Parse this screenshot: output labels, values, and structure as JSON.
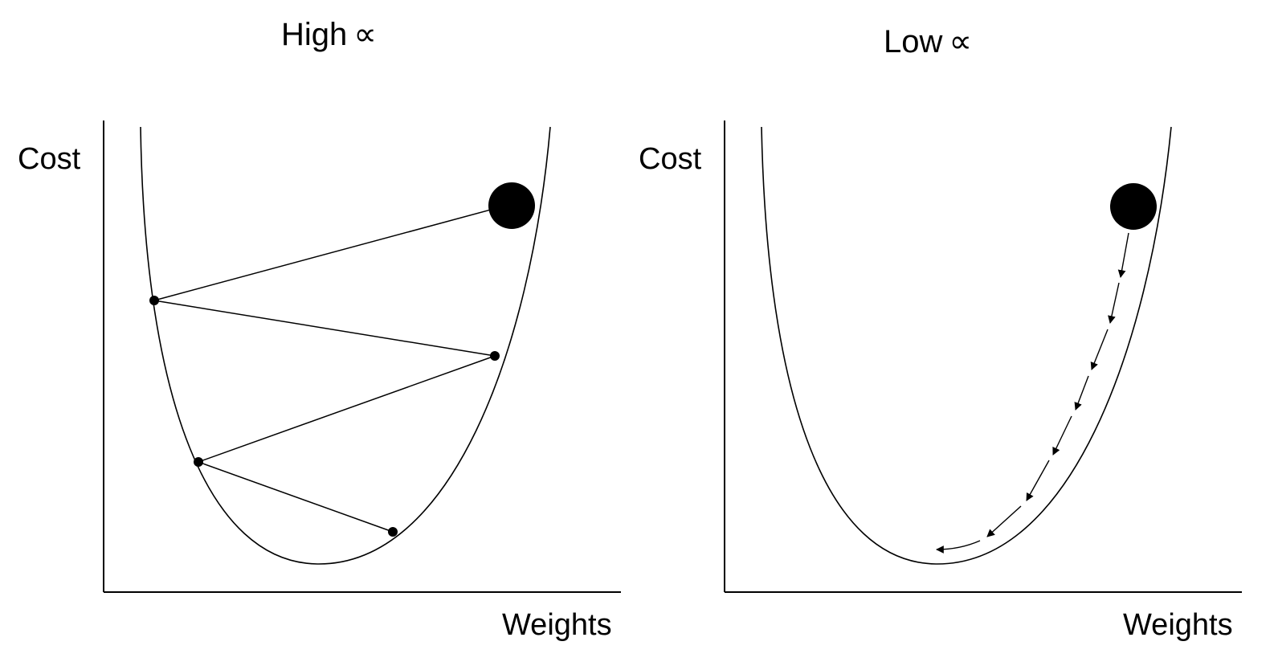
{
  "panels": [
    {
      "title_text": "High",
      "symbol": "∝",
      "ylabel": "Cost",
      "xlabel": "Weights",
      "steps": "large jumps oscillating across the valley"
    },
    {
      "title_text": "Low",
      "symbol": "∝",
      "ylabel": "Cost",
      "xlabel": "Weights",
      "steps": "small dashed steps descending along the curve"
    }
  ],
  "colors": {
    "ink": "#000000",
    "background": "#ffffff"
  }
}
